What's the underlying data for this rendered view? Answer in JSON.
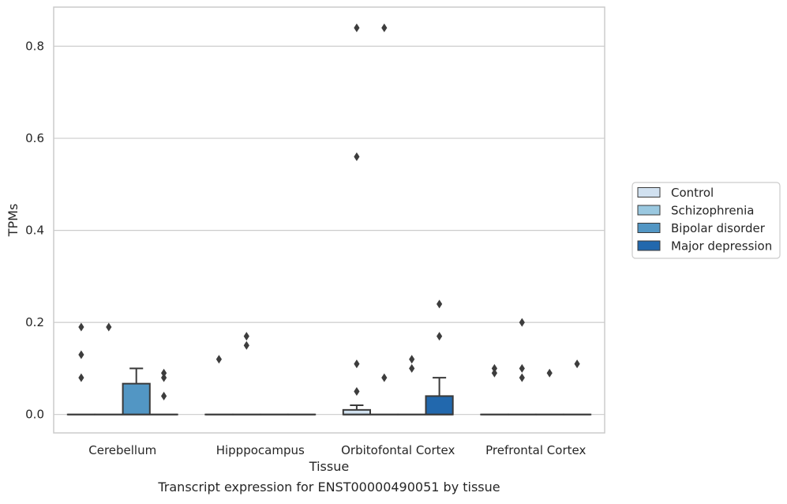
{
  "chart_data": {
    "type": "box",
    "title": "Transcript expression for ENST00000490051 by tissue",
    "xlabel": "Tissue",
    "ylabel": "TPMs",
    "ylim": [
      -0.04,
      0.885
    ],
    "yticks": [
      0.0,
      0.2,
      0.4,
      0.6,
      0.8
    ],
    "ytick_labels": [
      "0.0",
      "0.2",
      "0.4",
      "0.6",
      "0.8"
    ],
    "grid": "horizontal",
    "legend_position": "right",
    "categories": [
      "Cerebellum",
      "Hipppocampus",
      "Orbitofontal Cortex",
      "Prefrontal Cortex"
    ],
    "series": [
      {
        "name": "Control",
        "color": "#d1e1f0",
        "boxes": [
          {
            "q1": 0,
            "median": 0,
            "q3": 0,
            "whisker_low": 0,
            "whisker_high": 0,
            "outliers": [
              0.08,
              0.13,
              0.19
            ]
          },
          {
            "q1": 0,
            "median": 0,
            "q3": 0,
            "whisker_low": 0,
            "whisker_high": 0,
            "outliers": [
              0.12
            ]
          },
          {
            "q1": 0,
            "median": 0,
            "q3": 0.01,
            "whisker_low": 0,
            "whisker_high": 0.02,
            "outliers": [
              0.05,
              0.11,
              0.56,
              0.84
            ]
          },
          {
            "q1": 0,
            "median": 0,
            "q3": 0,
            "whisker_low": 0,
            "whisker_high": 0,
            "outliers": [
              0.09,
              0.1
            ]
          }
        ]
      },
      {
        "name": "Schizophrenia",
        "color": "#9ac8e0",
        "boxes": [
          {
            "q1": 0,
            "median": 0,
            "q3": 0,
            "whisker_low": 0,
            "whisker_high": 0,
            "outliers": [
              0.19
            ]
          },
          {
            "q1": 0,
            "median": 0,
            "q3": 0,
            "whisker_low": 0,
            "whisker_high": 0,
            "outliers": [
              0.15,
              0.17
            ]
          },
          {
            "q1": 0,
            "median": 0,
            "q3": 0,
            "whisker_low": 0,
            "whisker_high": 0,
            "outliers": [
              0.84,
              0.08
            ]
          },
          {
            "q1": 0,
            "median": 0,
            "q3": 0,
            "whisker_low": 0,
            "whisker_high": 0,
            "outliers": [
              0.2,
              0.1,
              0.08
            ]
          }
        ]
      },
      {
        "name": "Bipolar disorder",
        "color": "#5296c4",
        "boxes": [
          {
            "q1": 0,
            "median": 0,
            "q3": 0.067,
            "whisker_low": 0,
            "whisker_high": 0.1,
            "outliers": []
          },
          {
            "q1": 0,
            "median": 0,
            "q3": 0,
            "whisker_low": 0,
            "whisker_high": 0,
            "outliers": []
          },
          {
            "q1": 0,
            "median": 0,
            "q3": 0,
            "whisker_low": 0,
            "whisker_high": 0,
            "outliers": [
              0.1,
              0.12
            ]
          },
          {
            "q1": 0,
            "median": 0,
            "q3": 0,
            "whisker_low": 0,
            "whisker_high": 0,
            "outliers": [
              0.09
            ]
          }
        ]
      },
      {
        "name": "Major depression",
        "color": "#2268ad",
        "boxes": [
          {
            "q1": 0,
            "median": 0,
            "q3": 0,
            "whisker_low": 0,
            "whisker_high": 0,
            "outliers": [
              0.04,
              0.08,
              0.09
            ]
          },
          {
            "q1": 0,
            "median": 0,
            "q3": 0,
            "whisker_low": 0,
            "whisker_high": 0,
            "outliers": []
          },
          {
            "q1": 0,
            "median": 0,
            "q3": 0.04,
            "whisker_low": 0,
            "whisker_high": 0.08,
            "outliers": [
              0.17,
              0.24
            ]
          },
          {
            "q1": 0,
            "median": 0,
            "q3": 0,
            "whisker_low": 0,
            "whisker_high": 0,
            "outliers": [
              0.11
            ]
          }
        ]
      }
    ]
  }
}
